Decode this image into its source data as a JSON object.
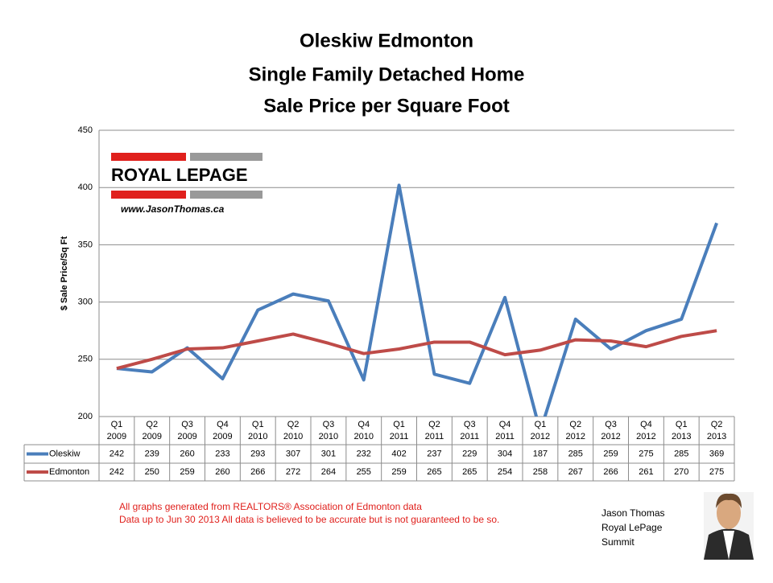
{
  "chart_data": {
    "type": "line",
    "title": [
      "Oleskiw Edmonton",
      "Single Family Detached Home",
      "Sale Price per Square Foot"
    ],
    "y_label": "$ Sale Price/Sq Ft",
    "categories": [
      [
        "Q1",
        "2009"
      ],
      [
        "Q2",
        "2009"
      ],
      [
        "Q3",
        "2009"
      ],
      [
        "Q4",
        "2009"
      ],
      [
        "Q1",
        "2010"
      ],
      [
        "Q2",
        "2010"
      ],
      [
        "Q3",
        "2010"
      ],
      [
        "Q4",
        "2010"
      ],
      [
        "Q1",
        "2011"
      ],
      [
        "Q2",
        "2011"
      ],
      [
        "Q3",
        "2011"
      ],
      [
        "Q4",
        "2011"
      ],
      [
        "Q1",
        "2012"
      ],
      [
        "Q2",
        "2012"
      ],
      [
        "Q3",
        "2012"
      ],
      [
        "Q4",
        "2012"
      ],
      [
        "Q1",
        "2013"
      ],
      [
        "Q2",
        "2013"
      ]
    ],
    "series": [
      {
        "name": "Oleskiw",
        "color": "#4a7ebb",
        "values": [
          242,
          239,
          260,
          233,
          293,
          307,
          301,
          232,
          402,
          237,
          229,
          304,
          187,
          285,
          259,
          275,
          285,
          369
        ]
      },
      {
        "name": "Edmonton",
        "color": "#be4b48",
        "values": [
          242,
          250,
          259,
          260,
          266,
          272,
          264,
          255,
          259,
          265,
          265,
          254,
          258,
          267,
          266,
          261,
          270,
          275
        ]
      }
    ],
    "ylim": [
      200,
      450
    ],
    "yticks": [
      200,
      250,
      300,
      350,
      400,
      450
    ],
    "grid": true
  },
  "logo": {
    "brand": "ROYAL LEPAGE",
    "url": "www.JasonThomas.ca"
  },
  "footer": {
    "notes": [
      "All graphs generated from REALTORS® Association of Edmonton data",
      "Data up to  Jun 30 2013  All data is believed to be accurate but is not guaranteed to be so."
    ],
    "agent": [
      "Jason Thomas",
      "Royal LePage",
      "Summit"
    ]
  }
}
